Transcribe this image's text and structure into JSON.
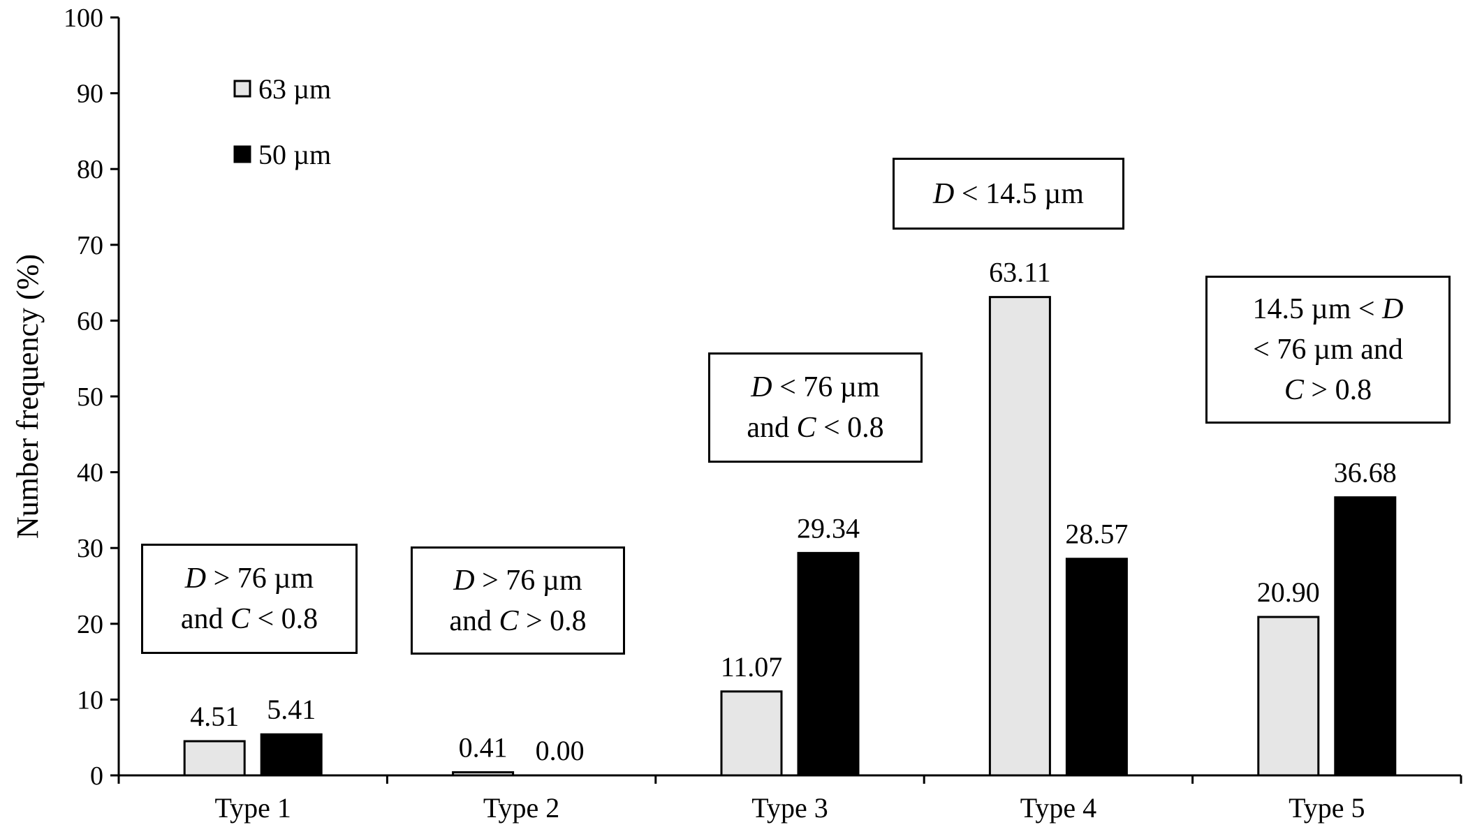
{
  "chart_data": {
    "type": "bar",
    "title": "",
    "xlabel": "",
    "ylabel": "Number frequency (%)",
    "ylim": [
      0,
      100
    ],
    "yticks": [
      0,
      10,
      20,
      30,
      40,
      50,
      60,
      70,
      80,
      90,
      100
    ],
    "grid": false,
    "legend_position": "top-left",
    "categories": [
      "Type 1",
      "Type 2",
      "Type 3",
      "Type 4",
      "Type 5"
    ],
    "series": [
      {
        "name": "63 µm",
        "color": "#e6e6e6",
        "values": [
          4.51,
          0.41,
          11.07,
          63.11,
          20.9
        ],
        "labels": [
          "4.51",
          "0.41",
          "11.07",
          "63.11",
          "20.90"
        ]
      },
      {
        "name": "50 µm",
        "color": "#000000",
        "values": [
          5.41,
          0.0,
          29.34,
          28.57,
          36.68
        ],
        "labels": [
          "5.41",
          "0.00",
          "29.34",
          "28.57",
          "36.68"
        ]
      }
    ],
    "annotations": {
      "type1": {
        "line1_var": "D",
        "line1_rest": " > 76 µm",
        "line2_pre": "and ",
        "line2_var": "C",
        "line2_rest": " < 0.8"
      },
      "type2": {
        "line1_var": "D",
        "line1_rest": " > 76 µm",
        "line2_pre": "and ",
        "line2_var": "C",
        "line2_rest": " > 0.8"
      },
      "type3": {
        "line1_var": "D",
        "line1_rest": " < 76 µm",
        "line2_pre": "and ",
        "line2_var": "C",
        "line2_rest": " < 0.8"
      },
      "type4": {
        "line1_var": "D",
        "line1_rest": " < 14.5 µm"
      },
      "type5": {
        "line1_pre": "14.5 µm < ",
        "line1_var": "D",
        "line2_rest": "< 76 µm and",
        "line3_var": "C",
        "line3_rest": " > 0.8"
      }
    }
  }
}
